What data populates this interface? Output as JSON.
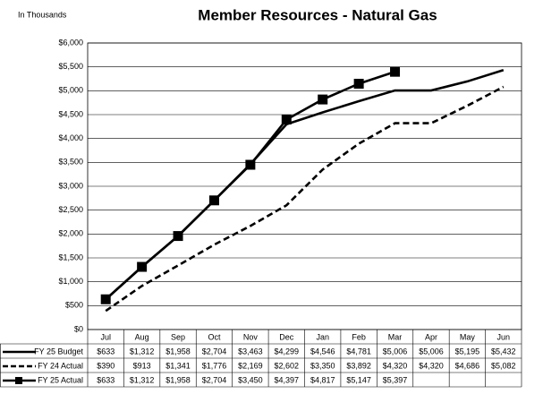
{
  "chart_data": {
    "type": "line",
    "title": "Member Resources - Natural Gas",
    "subtitle": "In Thousands",
    "categories": [
      "Jul",
      "Aug",
      "Sep",
      "Oct",
      "Nov",
      "Dec",
      "Jan",
      "Feb",
      "Mar",
      "Apr",
      "May",
      "Jun"
    ],
    "ylim": [
      0,
      6000
    ],
    "yticks": [
      {
        "value": 0,
        "label": "$0"
      },
      {
        "value": 500,
        "label": "$500"
      },
      {
        "value": 1000,
        "label": "$1,000"
      },
      {
        "value": 1500,
        "label": "$1,500"
      },
      {
        "value": 2000,
        "label": "$2,000"
      },
      {
        "value": 2500,
        "label": "$2,500"
      },
      {
        "value": 3000,
        "label": "$3,000"
      },
      {
        "value": 3500,
        "label": "$3,500"
      },
      {
        "value": 4000,
        "label": "$4,000"
      },
      {
        "value": 4500,
        "label": "$4,500"
      },
      {
        "value": 5000,
        "label": "$5,000"
      },
      {
        "value": 5500,
        "label": "$5,500"
      },
      {
        "value": 6000,
        "label": "$6,000"
      }
    ],
    "grid": true,
    "series": [
      {
        "name": "FY 25 Budget",
        "color": "#000000",
        "style": "solid",
        "marker": "none",
        "values": [
          633,
          1312,
          1958,
          2704,
          3463,
          4299,
          4546,
          4781,
          5006,
          5006,
          5195,
          5432
        ],
        "value_labels": [
          "$633",
          "$1,312",
          "$1,958",
          "$2,704",
          "$3,463",
          "$4,299",
          "$4,546",
          "$4,781",
          "$5,006",
          "$5,006",
          "$5,195",
          "$5,432"
        ]
      },
      {
        "name": "FY 24 Actual",
        "color": "#000000",
        "style": "dashed",
        "marker": "none",
        "values": [
          390,
          913,
          1341,
          1776,
          2169,
          2602,
          3350,
          3892,
          4320,
          4320,
          4686,
          5082
        ],
        "value_labels": [
          "$390",
          "$913",
          "$1,341",
          "$1,776",
          "$2,169",
          "$2,602",
          "$3,350",
          "$3,892",
          "$4,320",
          "$4,320",
          "$4,686",
          "$5,082"
        ]
      },
      {
        "name": "FY 25 Actual",
        "color": "#000000",
        "style": "solid",
        "marker": "square",
        "values": [
          633,
          1312,
          1958,
          2704,
          3450,
          4397,
          4817,
          5147,
          5397,
          null,
          null,
          null
        ],
        "value_labels": [
          "$633",
          "$1,312",
          "$1,958",
          "$2,704",
          "$3,450",
          "$4,397",
          "$4,817",
          "$5,147",
          "$5,397",
          null,
          null,
          null
        ]
      }
    ]
  }
}
